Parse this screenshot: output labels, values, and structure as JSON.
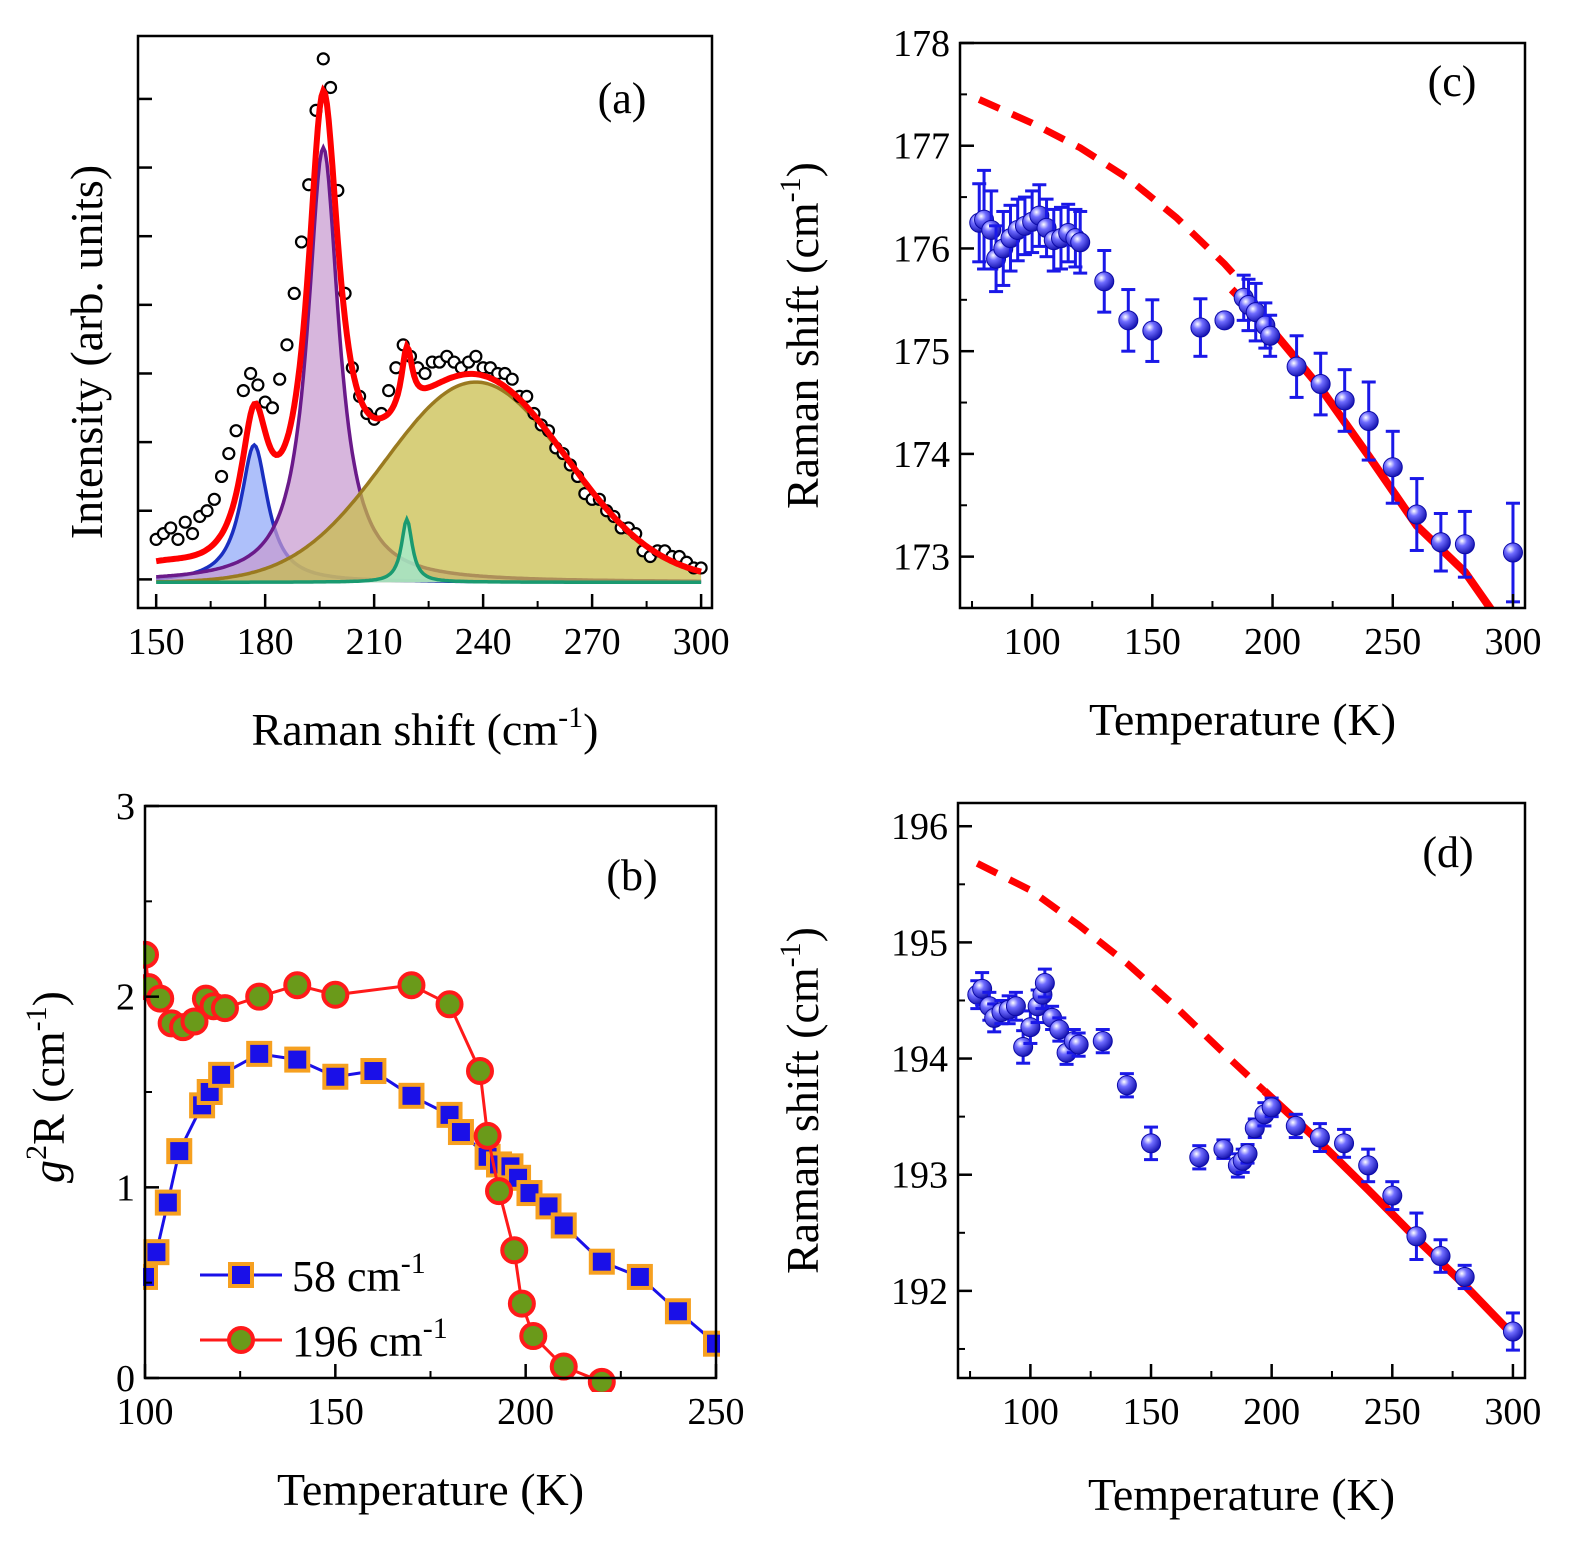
{
  "chart_data": [
    {
      "panel": "(a)",
      "type": "line",
      "xlabel": "Raman shift (cm",
      "xlabel_sup": "-1",
      "xlabel_end": ")",
      "ylabel": "Intensity (arb. units)",
      "xlim": [
        145,
        303
      ],
      "ylim": [
        0,
        1.0
      ],
      "xticks": [
        "150",
        "180",
        "210",
        "240",
        "270",
        "300"
      ],
      "xtick_values": [
        150,
        180,
        210,
        240,
        270,
        300
      ],
      "y_tick_labels_shown": false,
      "baseline": 0.045,
      "peaks": [
        {
          "shape": "lorentz",
          "center": 177,
          "width": 4.5,
          "height": 0.24,
          "fill": "#8fa8f8",
          "stroke": "#1a2fc0"
        },
        {
          "shape": "lorentz",
          "center": 196,
          "width": 5.2,
          "height": 0.76,
          "fill": "#c79ad0",
          "stroke": "#6a1a8a"
        },
        {
          "shape": "gauss",
          "center": 238,
          "width": 25,
          "height": 0.35,
          "fill": "#c8bd48",
          "stroke": "#9a7a20"
        },
        {
          "shape": "lorentz",
          "center": 219,
          "width": 1.8,
          "height": 0.11,
          "fill": "#9ef0d8",
          "stroke": "#1a9a70"
        }
      ],
      "data_series": {
        "name": "",
        "x": [
          150,
          152,
          154,
          156,
          158,
          160,
          162,
          164,
          166,
          168,
          170,
          172,
          174,
          176,
          178,
          180,
          182,
          184,
          186,
          188,
          190,
          192,
          194,
          196,
          198,
          200,
          202,
          204,
          206,
          208,
          210,
          212,
          214,
          216,
          218,
          220,
          222,
          224,
          226,
          228,
          230,
          232,
          234,
          236,
          238,
          240,
          242,
          244,
          246,
          248,
          250,
          252,
          254,
          256,
          258,
          260,
          262,
          264,
          266,
          268,
          270,
          272,
          274,
          276,
          278,
          280,
          282,
          284,
          286,
          288,
          290,
          292,
          294,
          296,
          298,
          300
        ],
        "y": [
          0.12,
          0.13,
          0.14,
          0.12,
          0.15,
          0.13,
          0.16,
          0.17,
          0.19,
          0.23,
          0.27,
          0.31,
          0.38,
          0.41,
          0.39,
          0.36,
          0.35,
          0.4,
          0.46,
          0.55,
          0.64,
          0.74,
          0.87,
          0.96,
          0.91,
          0.73,
          0.55,
          0.42,
          0.37,
          0.34,
          0.33,
          0.34,
          0.38,
          0.42,
          0.46,
          0.44,
          0.42,
          0.41,
          0.43,
          0.43,
          0.44,
          0.43,
          0.42,
          0.43,
          0.44,
          0.42,
          0.42,
          0.41,
          0.41,
          0.4,
          0.37,
          0.37,
          0.34,
          0.32,
          0.31,
          0.28,
          0.27,
          0.25,
          0.23,
          0.2,
          0.19,
          0.19,
          0.17,
          0.16,
          0.14,
          0.14,
          0.13,
          0.1,
          0.09,
          0.1,
          0.1,
          0.09,
          0.09,
          0.08,
          0.07,
          0.07
        ],
        "marker": "open-circle",
        "color": "#000000"
      },
      "fit_color": "#ff0000"
    },
    {
      "panel": "(b)",
      "type": "line",
      "xlabel": "Temperature (K)",
      "ylabel_italic": "g",
      "ylabel_sup": "2",
      "ylabel_rest": "R (cm",
      "ylabel_sup2": "-1",
      "ylabel_end": ")",
      "xlim": [
        100,
        250
      ],
      "ylim": [
        0,
        3
      ],
      "xticks": [
        "100",
        "150",
        "200",
        "250"
      ],
      "xtick_values": [
        100,
        150,
        200,
        250
      ],
      "yticks": [
        "0",
        "1",
        "2",
        "3"
      ],
      "ytick_values": [
        0,
        1,
        2,
        3
      ],
      "series": [
        {
          "name": "58 cm",
          "name_sup": "-1",
          "marker": "square",
          "marker_fill": "#1a10e8",
          "marker_stroke": "#f6a020",
          "line_color": "#1a10e8",
          "x": [
            100,
            103,
            106,
            109,
            115,
            117,
            120,
            130,
            140,
            150,
            160,
            170,
            180,
            183,
            190,
            193,
            196,
            198,
            201,
            206,
            210,
            220,
            230,
            240,
            250
          ],
          "y": [
            0.53,
            0.66,
            0.92,
            1.19,
            1.43,
            1.5,
            1.59,
            1.7,
            1.67,
            1.58,
            1.61,
            1.48,
            1.38,
            1.29,
            1.16,
            1.12,
            1.11,
            1.05,
            0.97,
            0.9,
            0.8,
            0.61,
            0.53,
            0.35,
            0.18
          ]
        },
        {
          "name": "196 cm",
          "name_sup": "-1",
          "marker": "circle",
          "marker_fill": "#6a9a1a",
          "marker_stroke": "#ff1a1a",
          "line_color": "#ff1a1a",
          "x": [
            100,
            101,
            104,
            107,
            110,
            113,
            116,
            118,
            121,
            130,
            140,
            150,
            170,
            180,
            188,
            190,
            193,
            197,
            199,
            202,
            210,
            220
          ],
          "y": [
            2.22,
            2.05,
            1.99,
            1.86,
            1.84,
            1.87,
            1.99,
            1.95,
            1.94,
            2.0,
            2.06,
            2.01,
            2.06,
            1.96,
            1.61,
            1.27,
            0.98,
            0.67,
            0.39,
            0.22,
            0.06,
            -0.02
          ]
        }
      ]
    },
    {
      "panel": "(c)",
      "type": "scatter",
      "xlabel": "Temperature (K)",
      "ylabel": "Raman shift (cm",
      "ylabel_sup": "-1",
      "ylabel_end": ")",
      "xlim": [
        70,
        305
      ],
      "ylim": [
        172.5,
        178
      ],
      "xticks": [
        "100",
        "150",
        "200",
        "250",
        "300"
      ],
      "xtick_values": [
        100,
        150,
        200,
        250,
        300
      ],
      "yticks": [
        "173",
        "174",
        "175",
        "176",
        "177",
        "178"
      ],
      "ytick_values": [
        173,
        174,
        175,
        176,
        177,
        178
      ],
      "points": {
        "x": [
          78,
          80,
          83,
          85,
          88,
          91,
          94,
          97,
          100,
          103,
          106,
          109,
          112,
          115,
          118,
          120,
          130,
          140,
          150,
          170,
          180,
          188,
          190,
          193,
          197,
          199,
          210,
          220,
          230,
          240,
          250,
          260,
          270,
          280,
          300
        ],
        "y": [
          176.25,
          176.28,
          176.18,
          175.9,
          176.0,
          176.1,
          176.18,
          176.22,
          176.26,
          176.32,
          176.2,
          176.08,
          176.1,
          176.15,
          176.1,
          176.06,
          175.68,
          175.3,
          175.2,
          175.23,
          175.3,
          175.52,
          175.45,
          175.38,
          175.25,
          175.15,
          174.85,
          174.68,
          174.52,
          174.32,
          173.87,
          173.41,
          173.14,
          173.12,
          173.04
        ],
        "err": [
          0.38,
          0.48,
          0.38,
          0.32,
          0.36,
          0.32,
          0.3,
          0.28,
          0.3,
          0.3,
          0.28,
          0.3,
          0.3,
          0.28,
          0.28,
          0.3,
          0.3,
          0.3,
          0.3,
          0.28,
          0.06,
          0.22,
          0.25,
          0.28,
          0.22,
          0.2,
          0.3,
          0.3,
          0.3,
          0.38,
          0.35,
          0.35,
          0.28,
          0.32,
          0.48
        ],
        "color": "#1a18e8"
      },
      "dashed_line": {
        "x": [
          78,
          100,
          120,
          140,
          160,
          180,
          185
        ],
        "y": [
          177.45,
          177.22,
          176.98,
          176.68,
          176.3,
          175.85,
          175.72
        ],
        "color": "#ff0000"
      },
      "solid_line": {
        "x": [
          183,
          200,
          220,
          240,
          260,
          280,
          292
        ],
        "y": [
          175.6,
          175.2,
          174.64,
          173.98,
          173.3,
          172.85,
          172.45
        ],
        "color": "#ff0000"
      }
    },
    {
      "panel": "(d)",
      "type": "scatter",
      "xlabel": "Temperature (K)",
      "ylabel": "Raman shift (cm",
      "ylabel_sup": "-1",
      "ylabel_end": ")",
      "xlim": [
        70,
        305
      ],
      "ylim": [
        191.25,
        196.2
      ],
      "xticks": [
        "100",
        "150",
        "200",
        "250",
        "300"
      ],
      "xtick_values": [
        100,
        150,
        200,
        250,
        300
      ],
      "yticks": [
        "192",
        "193",
        "194",
        "195",
        "196"
      ],
      "ytick_values": [
        192,
        193,
        194,
        195,
        196
      ],
      "points": {
        "x": [
          78,
          80,
          83,
          85,
          88,
          91,
          94,
          97,
          100,
          103,
          105,
          106,
          109,
          112,
          115,
          118,
          120,
          130,
          140,
          150,
          170,
          180,
          186,
          188,
          190,
          193,
          197,
          200,
          210,
          220,
          230,
          240,
          250,
          260,
          270,
          280,
          300
        ],
        "y": [
          194.55,
          194.6,
          194.45,
          194.35,
          194.4,
          194.42,
          194.45,
          194.1,
          194.27,
          194.45,
          194.55,
          194.65,
          194.35,
          194.25,
          194.05,
          194.15,
          194.12,
          194.15,
          193.77,
          193.27,
          193.15,
          193.22,
          193.08,
          193.12,
          193.18,
          193.4,
          193.52,
          193.58,
          193.42,
          193.32,
          193.27,
          193.08,
          192.82,
          192.47,
          192.3,
          192.12,
          191.65
        ],
        "err": [
          0.12,
          0.14,
          0.12,
          0.12,
          0.1,
          0.12,
          0.12,
          0.14,
          0.14,
          0.14,
          0.12,
          0.12,
          0.1,
          0.1,
          0.1,
          0.1,
          0.1,
          0.1,
          0.1,
          0.14,
          0.1,
          0.08,
          0.1,
          0.1,
          0.08,
          0.08,
          0.1,
          0.08,
          0.1,
          0.12,
          0.12,
          0.14,
          0.12,
          0.2,
          0.14,
          0.1,
          0.16
        ],
        "color": "#1a18e8"
      },
      "dashed_line": {
        "x": [
          78,
          100,
          120,
          140,
          160,
          180,
          197
        ],
        "y": [
          195.68,
          195.45,
          195.15,
          194.82,
          194.45,
          194.05,
          193.72
        ],
        "color": "#ff0000"
      },
      "solid_line": {
        "x": [
          197,
          220,
          240,
          260,
          280,
          300
        ],
        "y": [
          193.72,
          193.28,
          192.87,
          192.45,
          192.05,
          191.62
        ],
        "color": "#ff0000"
      }
    }
  ]
}
